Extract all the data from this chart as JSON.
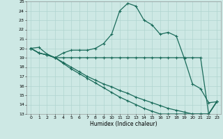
{
  "xlabel": "Humidex (Indice chaleur)",
  "xlim": [
    -0.5,
    23.5
  ],
  "ylim": [
    13,
    25
  ],
  "yticks": [
    13,
    14,
    15,
    16,
    17,
    18,
    19,
    20,
    21,
    22,
    23,
    24,
    25
  ],
  "xticks": [
    0,
    1,
    2,
    3,
    4,
    5,
    6,
    7,
    8,
    9,
    10,
    11,
    12,
    13,
    14,
    15,
    16,
    17,
    18,
    19,
    20,
    21,
    22,
    23
  ],
  "bg_color": "#cde8e4",
  "grid_color": "#b0d4cf",
  "line_color": "#1a6b5a",
  "line_width": 0.9,
  "marker": "+",
  "marker_size": 3.5,
  "lines": [
    [
      20.0,
      20.1,
      19.4,
      19.0,
      19.5,
      19.8,
      19.8,
      19.8,
      20.0,
      20.5,
      21.5,
      24.0,
      24.8,
      24.5,
      23.0,
      22.5,
      21.5,
      21.7,
      21.3,
      18.9,
      16.2,
      15.7,
      14.2,
      14.3
    ],
    [
      20.0,
      19.5,
      19.3,
      19.0,
      19.0,
      19.0,
      19.0,
      19.0,
      19.0,
      19.0,
      19.0,
      19.0,
      19.0,
      19.0,
      19.0,
      19.0,
      19.0,
      19.0,
      19.0,
      19.0,
      19.0,
      19.0,
      13.0,
      14.3
    ],
    [
      20.0,
      19.5,
      19.3,
      19.0,
      18.5,
      18.0,
      17.5,
      17.0,
      16.6,
      16.2,
      15.9,
      15.5,
      15.2,
      14.8,
      14.5,
      14.2,
      13.9,
      13.6,
      13.4,
      13.2,
      13.0,
      13.0,
      13.0,
      14.3
    ],
    [
      20.0,
      19.5,
      19.3,
      19.0,
      18.4,
      17.8,
      17.3,
      16.8,
      16.3,
      15.8,
      15.3,
      14.8,
      14.4,
      14.0,
      13.6,
      13.3,
      13.0,
      13.0,
      13.0,
      13.0,
      13.0,
      13.0,
      13.0,
      14.3
    ]
  ]
}
